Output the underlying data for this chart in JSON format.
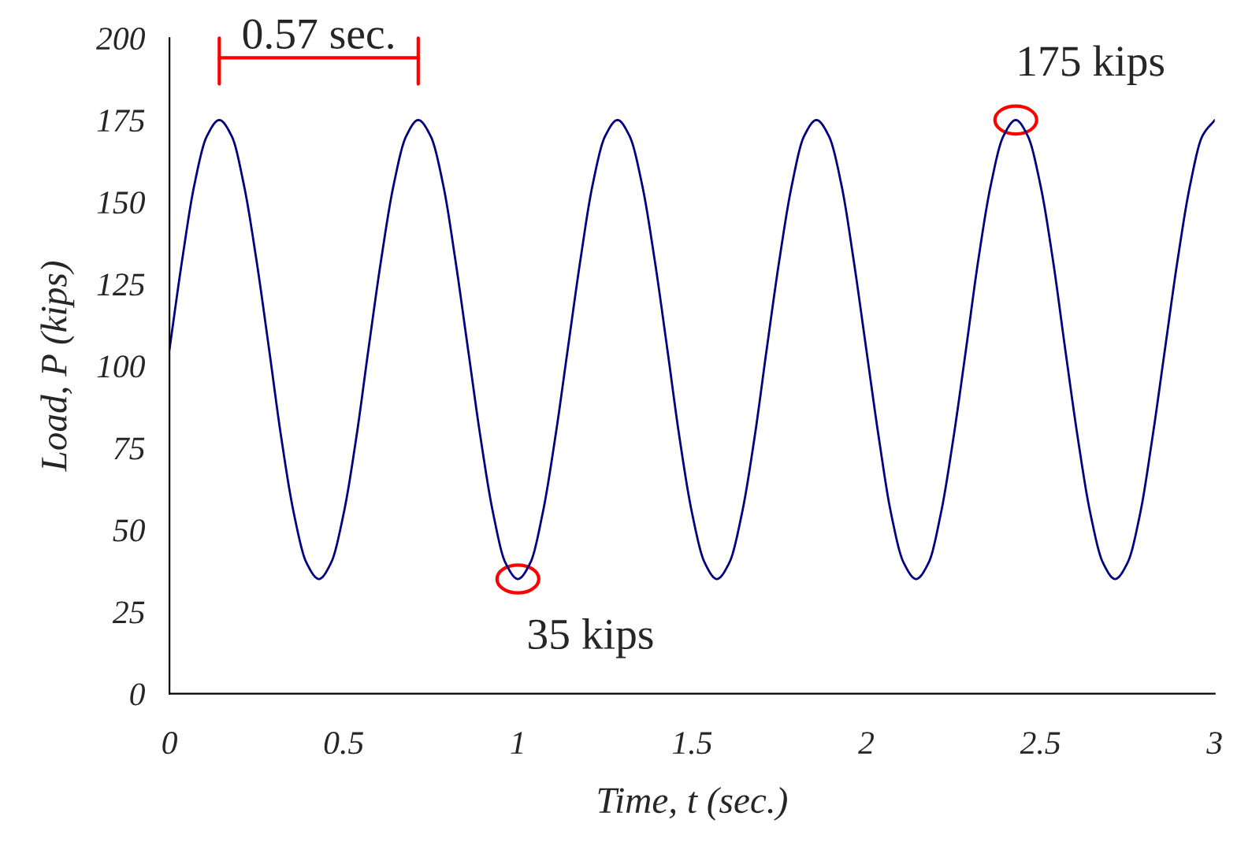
{
  "chart_data": {
    "type": "line",
    "xlabel": "Time, t (sec.)",
    "ylabel": "Load, P (kips)",
    "x": [
      0,
      0.036,
      0.071,
      0.107,
      0.143,
      0.179,
      0.214,
      0.25,
      0.286,
      0.321,
      0.357,
      0.393,
      0.429,
      0.464,
      0.5,
      0.536,
      0.571,
      0.607,
      0.643,
      0.679,
      0.714,
      0.75,
      0.786,
      0.821,
      0.857,
      0.893,
      0.929,
      0.964,
      1.0,
      1.036,
      1.071,
      1.107,
      1.143,
      1.179,
      1.214,
      1.25,
      1.286,
      1.321,
      1.357,
      1.393,
      1.429,
      1.464,
      1.5,
      1.536,
      1.571,
      1.607,
      1.643,
      1.679,
      1.714,
      1.75,
      1.786,
      1.821,
      1.857,
      1.893,
      1.929,
      1.964,
      2.0,
      2.036,
      2.071,
      2.107,
      2.143,
      2.179,
      2.214,
      2.25,
      2.286,
      2.321,
      2.357,
      2.393,
      2.429,
      2.464,
      2.5,
      2.536,
      2.571,
      2.607,
      2.643,
      2.679,
      2.714,
      2.75,
      2.786,
      2.821,
      2.857,
      2.893,
      2.929,
      2.964,
      3.0
    ],
    "series": [
      {
        "color": "#000080",
        "values": [
          105,
          132,
          155,
          170,
          175,
          170,
          155,
          132,
          105,
          78,
          55,
          40,
          35,
          40,
          55,
          78,
          105,
          132,
          155,
          170,
          175,
          170,
          155,
          132,
          105,
          78,
          55,
          40,
          35,
          40,
          55,
          78,
          105,
          132,
          155,
          170,
          175,
          170,
          155,
          132,
          105,
          78,
          55,
          40,
          35,
          40,
          55,
          78,
          105,
          132,
          155,
          170,
          175,
          170,
          155,
          132,
          105,
          78,
          55,
          40,
          35,
          40,
          55,
          78,
          105,
          132,
          155,
          170,
          175,
          170,
          155,
          132,
          105,
          78,
          55,
          40,
          35,
          40,
          55,
          78,
          105,
          132,
          155,
          170,
          175
        ]
      }
    ],
    "xlim": [
      0,
      3
    ],
    "ylim": [
      0,
      200
    ],
    "xticks": [
      0,
      0.5,
      1,
      1.5,
      2,
      2.5,
      3
    ],
    "yticks": [
      0,
      25,
      50,
      75,
      100,
      125,
      150,
      175,
      200
    ],
    "grid": false,
    "legend": false,
    "annotations": [
      "0.57 sec.",
      {
        "text": "35 kips",
        "x": 1.0,
        "y": 35
      },
      {
        "text": "175 kips",
        "x": 2.429,
        "y": 175
      }
    ]
  }
}
